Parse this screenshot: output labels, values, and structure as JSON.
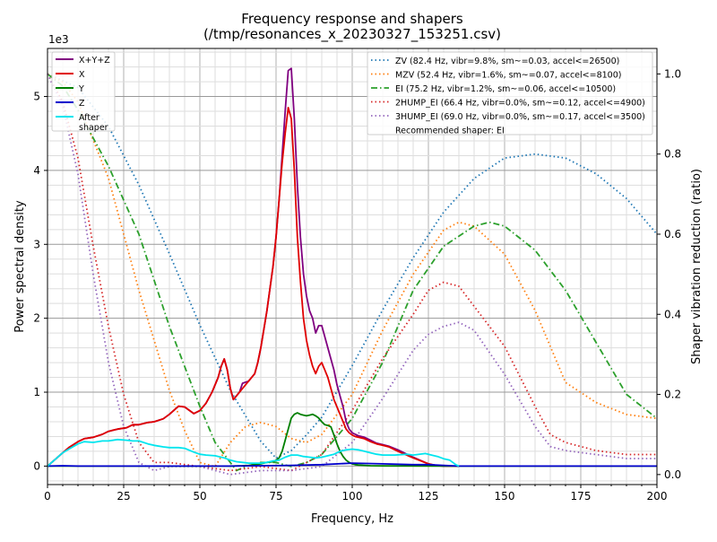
{
  "chart_data": {
    "type": "line",
    "title": "Frequency response and shapers",
    "subtitle": "(/tmp/resonances_x_20230327_153251.csv)",
    "xlabel": "Frequency, Hz",
    "ylabel": "Power spectral density",
    "y2label": "Shaper vibration reduction (ratio)",
    "y_multiplier": "1e3",
    "xlim": [
      0,
      200
    ],
    "ylim": [
      -250,
      5650
    ],
    "y2lim": [
      -0.025,
      1.0636
    ],
    "x_ticks": [
      0,
      25,
      50,
      75,
      100,
      125,
      150,
      175,
      200
    ],
    "y_ticks": [
      0,
      1000,
      2000,
      3000,
      4000,
      5000
    ],
    "y_tick_labels": [
      "0",
      "1",
      "2",
      "3",
      "4",
      "5"
    ],
    "y2_ticks": [
      0.0,
      0.2,
      0.4,
      0.6,
      0.8,
      1.0
    ],
    "y2_tick_labels": [
      "0.0",
      "0.2",
      "0.4",
      "0.6",
      "0.8",
      "1.0"
    ],
    "grid": true,
    "psd_legend_placement": "upper left",
    "shaper_legend_placement": "upper right",
    "recommendation_text": "Recommended shaper: EI",
    "psd_series": [
      {
        "name": "X+Y+Z",
        "color": "#800080",
        "x": [
          5,
          7,
          10,
          12,
          15,
          18,
          20,
          23,
          26,
          28,
          30,
          33,
          35,
          38,
          40,
          43,
          45,
          48,
          50,
          52,
          54,
          56,
          57,
          58,
          59,
          60,
          61,
          62,
          63,
          64,
          66,
          68,
          69,
          70,
          72,
          74,
          75,
          76,
          77,
          78,
          79,
          80,
          81,
          82,
          83,
          84,
          85,
          86,
          87,
          88,
          89,
          90,
          91,
          92,
          93,
          94,
          95,
          96,
          97,
          98,
          99,
          100,
          101,
          102,
          104,
          106,
          108,
          110,
          112,
          115,
          120,
          125,
          128,
          130,
          132,
          134,
          135
        ],
        "y": [
          180,
          250,
          330,
          370,
          390,
          430,
          470,
          500,
          520,
          560,
          560,
          590,
          600,
          640,
          700,
          810,
          800,
          710,
          750,
          850,
          1000,
          1200,
          1350,
          1450,
          1300,
          1050,
          900,
          950,
          1000,
          1120,
          1150,
          1250,
          1400,
          1600,
          2100,
          2700,
          3100,
          3600,
          4200,
          4800,
          5350,
          5380,
          4700,
          3800,
          3100,
          2600,
          2300,
          2100,
          2000,
          1800,
          1900,
          1900,
          1750,
          1600,
          1450,
          1300,
          1100,
          950,
          800,
          600,
          500,
          450,
          430,
          410,
          390,
          350,
          310,
          290,
          270,
          220,
          120,
          30,
          5,
          0,
          0,
          0,
          0
        ]
      },
      {
        "name": "X",
        "color": "#e00000",
        "x": [
          5,
          7,
          10,
          12,
          15,
          18,
          20,
          23,
          26,
          28,
          30,
          33,
          35,
          38,
          40,
          43,
          45,
          48,
          50,
          52,
          54,
          56,
          57,
          58,
          59,
          60,
          61,
          62,
          63,
          64,
          66,
          68,
          69,
          70,
          72,
          74,
          75,
          76,
          77,
          78,
          79,
          80,
          81,
          82,
          83,
          84,
          85,
          86,
          87,
          88,
          89,
          90,
          91,
          92,
          93,
          94,
          95,
          96,
          97,
          98,
          99,
          100,
          101,
          102,
          104,
          106,
          108,
          110,
          112,
          115,
          120,
          125,
          128,
          130,
          132,
          134,
          135
        ],
        "y": [
          180,
          250,
          330,
          370,
          390,
          430,
          470,
          500,
          520,
          560,
          560,
          590,
          600,
          640,
          700,
          810,
          800,
          710,
          750,
          850,
          1000,
          1200,
          1350,
          1450,
          1300,
          1050,
          900,
          950,
          1000,
          1050,
          1150,
          1250,
          1400,
          1600,
          2100,
          2700,
          3100,
          3600,
          4100,
          4500,
          4850,
          4700,
          4000,
          3100,
          2500,
          2000,
          1700,
          1500,
          1350,
          1250,
          1350,
          1400,
          1300,
          1200,
          1050,
          900,
          800,
          700,
          600,
          500,
          450,
          420,
          400,
          390,
          370,
          330,
          300,
          280,
          260,
          200,
          110,
          30,
          5,
          0,
          0,
          0,
          0
        ]
      },
      {
        "name": "Y",
        "color": "#008000",
        "x": [
          0,
          10,
          20,
          30,
          40,
          50,
          55,
          60,
          64,
          66,
          68,
          70,
          72,
          74,
          75,
          76,
          77,
          78,
          79,
          80,
          81,
          82,
          83,
          84,
          85,
          86,
          87,
          88,
          89,
          90,
          91,
          92,
          93,
          94,
          95,
          96,
          97,
          98,
          99,
          100,
          101,
          102,
          104,
          106,
          110,
          130,
          200
        ],
        "y": [
          0,
          0,
          0,
          0,
          0,
          0,
          0,
          0,
          5,
          10,
          20,
          30,
          50,
          60,
          80,
          110,
          200,
          350,
          500,
          650,
          700,
          720,
          700,
          690,
          680,
          690,
          700,
          680,
          650,
          600,
          560,
          550,
          530,
          420,
          300,
          200,
          130,
          80,
          50,
          30,
          20,
          15,
          10,
          5,
          2,
          0,
          0
        ]
      },
      {
        "name": "Z",
        "color": "#0000cc",
        "x": [
          0,
          5,
          10,
          20,
          40,
          60,
          80,
          90,
          100,
          110,
          120,
          125,
          130,
          135,
          150,
          200
        ],
        "y": [
          0,
          5,
          0,
          0,
          0,
          0,
          10,
          20,
          40,
          30,
          20,
          20,
          10,
          0,
          0,
          0
        ]
      },
      {
        "name": "After\nshaper",
        "color": "#00e5ee",
        "x": [
          5,
          7,
          10,
          12,
          15,
          18,
          20,
          23,
          26,
          28,
          30,
          33,
          35,
          38,
          40,
          43,
          45,
          48,
          50,
          52,
          55,
          58,
          60,
          62,
          64,
          66,
          68,
          70,
          72,
          74,
          76,
          78,
          80,
          82,
          84,
          86,
          88,
          90,
          92,
          94,
          96,
          98,
          100,
          102,
          104,
          106,
          108,
          110,
          114,
          118,
          120,
          124,
          126,
          128,
          130,
          132,
          134,
          135
        ],
        "y": [
          180,
          230,
          300,
          330,
          320,
          340,
          340,
          360,
          350,
          340,
          340,
          300,
          280,
          260,
          250,
          250,
          240,
          190,
          160,
          150,
          140,
          110,
          80,
          60,
          50,
          40,
          40,
          40,
          50,
          70,
          80,
          120,
          150,
          150,
          130,
          120,
          110,
          120,
          140,
          160,
          200,
          220,
          230,
          220,
          200,
          180,
          160,
          150,
          150,
          160,
          150,
          170,
          150,
          130,
          100,
          80,
          20,
          0
        ]
      }
    ],
    "shaper_series": [
      {
        "name": "ZV (82.4 Hz, vibr=9.8%, sm~=0.03, accel<=26500)",
        "color": "#1f77b4",
        "style": "dotted",
        "x": [
          0,
          10,
          20,
          30,
          40,
          50,
          60,
          70,
          75,
          80,
          85,
          90,
          100,
          110,
          120,
          130,
          140,
          150,
          160,
          170,
          180,
          190,
          200
        ],
        "y": [
          1.0,
          0.966,
          0.869,
          0.723,
          0.551,
          0.373,
          0.21,
          0.083,
          0.041,
          0.06,
          0.099,
          0.143,
          0.272,
          0.411,
          0.541,
          0.655,
          0.739,
          0.79,
          0.8,
          0.79,
          0.751,
          0.689,
          0.6
        ]
      },
      {
        "name": "MZV (52.4 Hz, vibr=1.6%, sm~=0.07, accel<=8100)",
        "color": "#ff7f0e",
        "style": "dotted",
        "x": [
          0,
          5,
          10,
          20,
          30,
          40,
          45,
          50,
          55,
          60,
          65,
          70,
          75,
          80,
          85,
          90,
          100,
          110,
          120,
          130,
          135,
          140,
          150,
          160,
          170,
          180,
          190,
          200
        ],
        "y": [
          1.0,
          0.98,
          0.93,
          0.74,
          0.46,
          0.21,
          0.11,
          0.03,
          0.02,
          0.08,
          0.12,
          0.13,
          0.12,
          0.09,
          0.08,
          0.1,
          0.2,
          0.36,
          0.5,
          0.61,
          0.63,
          0.62,
          0.55,
          0.41,
          0.23,
          0.18,
          0.15,
          0.14
        ]
      },
      {
        "name": "EI (75.2 Hz, vibr=1.2%, sm~=0.06, accel<=10500)",
        "color": "#2ca02c",
        "style": "dashdot",
        "x": [
          0,
          5,
          10,
          20,
          30,
          40,
          50,
          55,
          60,
          62,
          65,
          70,
          75,
          80,
          85,
          90,
          100,
          110,
          120,
          130,
          140,
          145,
          150,
          160,
          170,
          180,
          190,
          200
        ],
        "y": [
          1.0,
          0.97,
          0.91,
          0.77,
          0.6,
          0.37,
          0.17,
          0.08,
          0.03,
          0.01,
          0.02,
          0.03,
          0.03,
          0.02,
          0.03,
          0.05,
          0.14,
          0.28,
          0.46,
          0.57,
          0.62,
          0.63,
          0.62,
          0.56,
          0.46,
          0.33,
          0.2,
          0.14
        ]
      },
      {
        "name": "2HUMP_EI (66.4 Hz, vibr=0.0%, sm~=0.12, accel<=4900)",
        "color": "#d62728",
        "style": "dotted",
        "x": [
          0,
          5,
          10,
          15,
          20,
          25,
          30,
          35,
          40,
          50,
          60,
          70,
          80,
          90,
          100,
          110,
          120,
          125,
          130,
          135,
          140,
          150,
          160,
          165,
          170,
          180,
          190,
          200
        ],
        "y": [
          1.0,
          0.93,
          0.79,
          0.57,
          0.37,
          0.2,
          0.08,
          0.03,
          0.03,
          0.02,
          0.01,
          0.02,
          0.01,
          0.05,
          0.16,
          0.29,
          0.4,
          0.46,
          0.48,
          0.47,
          0.42,
          0.32,
          0.17,
          0.1,
          0.08,
          0.06,
          0.05,
          0.05
        ]
      },
      {
        "name": "3HUMP_EI (69.0 Hz, vibr=0.0%, sm~=0.17, accel<=3500)",
        "color": "#9467bd",
        "style": "dotted",
        "x": [
          0,
          5,
          10,
          15,
          20,
          25,
          30,
          35,
          40,
          50,
          60,
          70,
          80,
          90,
          100,
          110,
          120,
          125,
          130,
          135,
          140,
          150,
          160,
          165,
          170,
          180,
          190,
          200
        ],
        "y": [
          1.0,
          0.92,
          0.75,
          0.5,
          0.28,
          0.12,
          0.03,
          0.01,
          0.02,
          0.02,
          0.0,
          0.01,
          0.01,
          0.02,
          0.08,
          0.19,
          0.31,
          0.35,
          0.37,
          0.38,
          0.36,
          0.25,
          0.12,
          0.07,
          0.06,
          0.05,
          0.04,
          0.04
        ]
      }
    ]
  }
}
